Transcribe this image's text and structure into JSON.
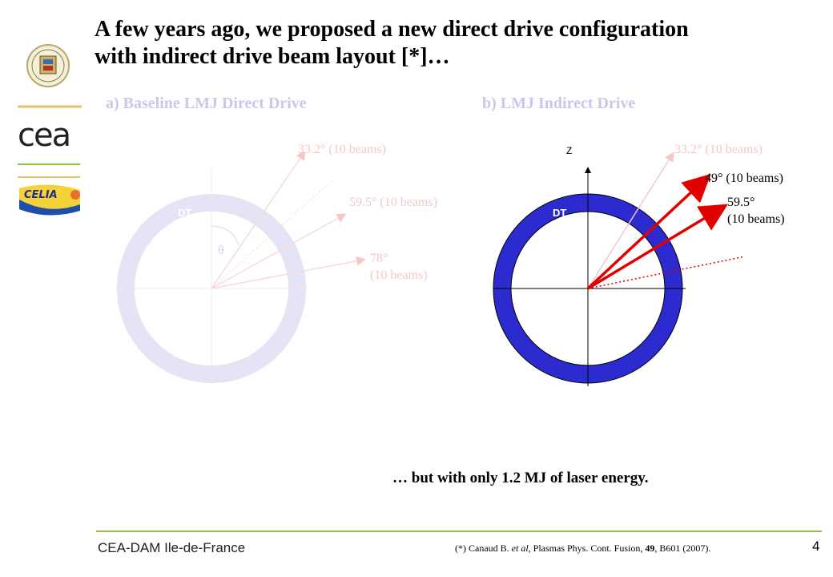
{
  "slide": {
    "title_line1": "A few years ago, we proposed a new direct drive configuration",
    "title_line2": "with indirect drive beam layout [*]…",
    "page_number": "4",
    "organization": "CEA-DAM Ile-de-France",
    "tagline": "… but with only 1.2 MJ of laser energy."
  },
  "panel_a": {
    "heading": "a) Baseline LMJ Direct Drive",
    "target_label": "DT",
    "angle_symbol": "θ",
    "beam_1": "33.2° (10 beams)",
    "beam_2": "59.5° (10 beams)",
    "beam_3_line1": "78°",
    "beam_3_line2": "(10 beams)"
  },
  "panel_b": {
    "heading": "b) LMJ Indirect Drive",
    "axis_label": "Z",
    "target_label": "DT",
    "beam_1": "33.2° (10 beams)",
    "beam_2": "49° (10 beams)",
    "beam_3_line1": "59.5°",
    "beam_3_line2": "(10 beams)"
  },
  "reference": {
    "prefix": "(*) Canaud B. ",
    "etal": "et al",
    "middle": ", Plasmas Phys. Cont. Fusion, ",
    "volume": "49",
    "suffix": ", B601 (2007)."
  },
  "logos": [
    "university-seal",
    "cea",
    "celia"
  ],
  "colors": {
    "target_ring": "#2b2bd0",
    "target_ring_faint": "#e4e4f6",
    "beam_red": "#e00000",
    "beam_faint": "#f5c8c8",
    "accent_green": "#8cc43c",
    "accent_gold": "#e8c070"
  }
}
